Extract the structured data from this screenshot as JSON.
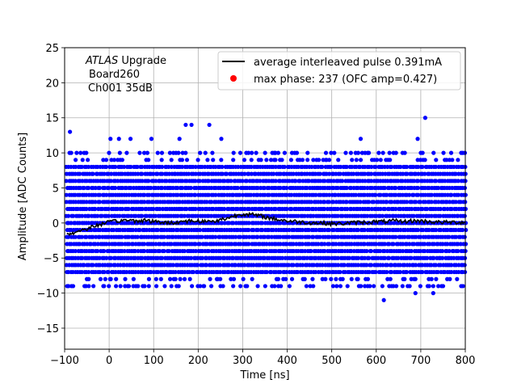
{
  "chart_data": {
    "type": "scatter",
    "xlabel": "Time [ns]",
    "ylabel": "Amplitude [ADC Counts]",
    "xlim": [
      -100,
      800
    ],
    "ylim": [
      -18,
      25
    ],
    "xticks": [
      -100,
      0,
      100,
      200,
      300,
      400,
      500,
      600,
      700,
      800
    ],
    "yticks": [
      -15,
      -10,
      -5,
      0,
      5,
      10,
      15,
      20,
      25
    ],
    "grid": true,
    "legend_position": "top-right",
    "annotation": {
      "line1_italic": "ATLAS",
      "line1_rest": " Upgrade",
      "line2": "Board260",
      "line3": "Ch001 35dB"
    },
    "legend": [
      {
        "label": "average interleaved pulse 0.391mA",
        "marker": "line",
        "color": "#000000"
      },
      {
        "label": "max phase: 237 (OFC amp=0.427)",
        "marker": "dot",
        "color": "#ff0000"
      }
    ],
    "samples": {
      "color": "#0000ff",
      "x_start": -95,
      "x_end": 800,
      "x_step": 5,
      "core_levels": [
        -7,
        -6,
        -5,
        -4,
        -3,
        -2,
        -1,
        0,
        1,
        2,
        3,
        4,
        5,
        6,
        7,
        8
      ],
      "sparse_levels": [
        -9,
        -8,
        9,
        10
      ],
      "outliers": [
        {
          "x": -88,
          "y": 13
        },
        {
          "x": 3,
          "y": 12
        },
        {
          "x": 22,
          "y": 12
        },
        {
          "x": 48,
          "y": 12
        },
        {
          "x": 95,
          "y": 12
        },
        {
          "x": 158,
          "y": 12
        },
        {
          "x": 172,
          "y": 14
        },
        {
          "x": 185,
          "y": 14
        },
        {
          "x": 225,
          "y": 14
        },
        {
          "x": 252,
          "y": 12
        },
        {
          "x": 565,
          "y": 12
        },
        {
          "x": 693,
          "y": 12
        },
        {
          "x": 710,
          "y": 15
        },
        {
          "x": 617,
          "y": -11
        },
        {
          "x": 645,
          "y": -9
        },
        {
          "x": 688,
          "y": -10
        },
        {
          "x": 728,
          "y": -10
        }
      ]
    },
    "average_pulse": {
      "color": "#000000",
      "x": [
        -95,
        -80,
        -60,
        -40,
        -20,
        0,
        20,
        40,
        60,
        80,
        100,
        120,
        140,
        160,
        180,
        200,
        220,
        240,
        260,
        280,
        300,
        320,
        340,
        360,
        380,
        400,
        420,
        440,
        460,
        480,
        500,
        520,
        540,
        560,
        580,
        600,
        620,
        640,
        660,
        680,
        700,
        720,
        740,
        760,
        780,
        800
      ],
      "y": [
        -1.6,
        -1.4,
        -1.0,
        -0.6,
        -0.2,
        0.1,
        0.3,
        0.4,
        0.3,
        0.4,
        0.2,
        0.1,
        0.0,
        0.2,
        0.3,
        0.3,
        0.2,
        0.3,
        0.6,
        1.0,
        1.3,
        1.2,
        1.0,
        0.7,
        0.5,
        0.3,
        0.2,
        0.1,
        0.0,
        0.0,
        -0.1,
        -0.1,
        0.0,
        0.1,
        0.1,
        0.2,
        0.2,
        0.3,
        0.2,
        0.3,
        0.3,
        0.2,
        0.1,
        0.1,
        0.1,
        0.1
      ]
    },
    "max_phase_point": null
  }
}
